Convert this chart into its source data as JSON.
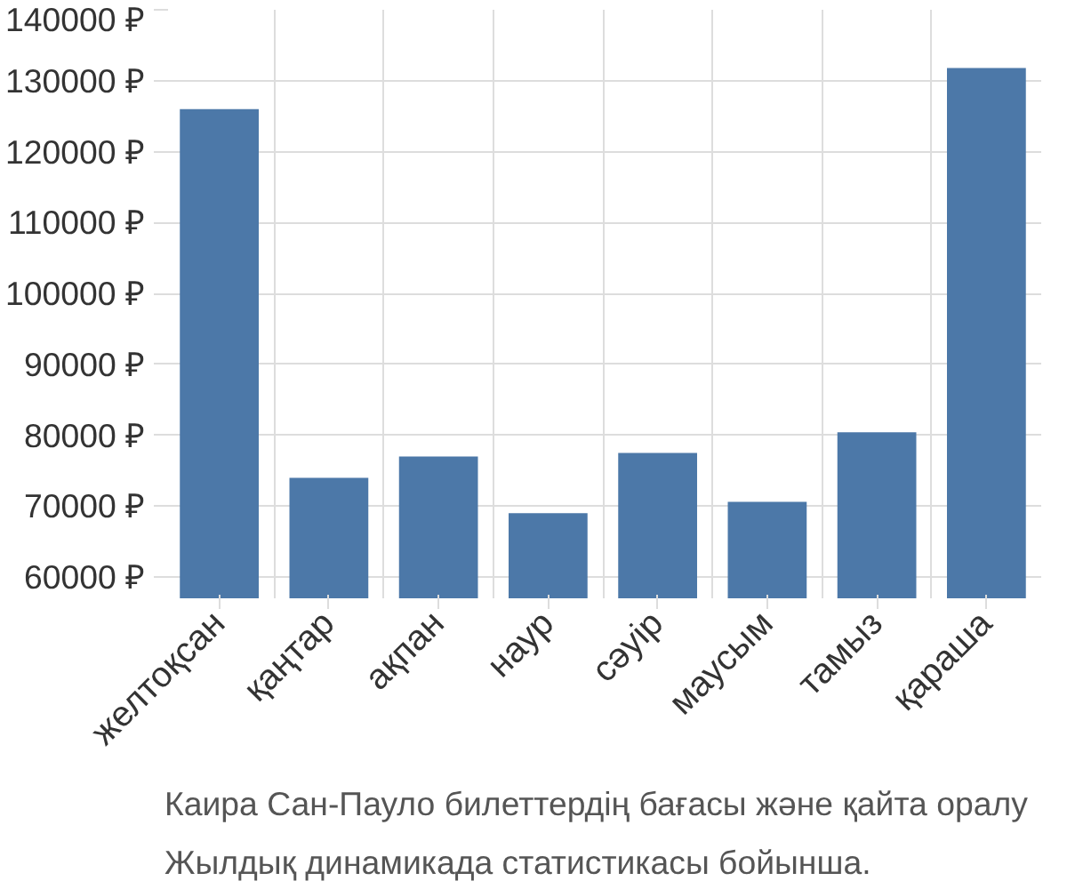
{
  "chart_data": {
    "type": "bar",
    "categories": [
      "желтоқсан",
      "қаңтар",
      "ақпан",
      "наур",
      "сәуір",
      "маусым",
      "тамыз",
      "қараша"
    ],
    "values": [
      126000,
      74000,
      77000,
      69000,
      77500,
      70600,
      80400,
      131800
    ],
    "color": "#4c78a8",
    "ylim": [
      57000,
      140000
    ],
    "yticks": [
      {
        "value": 60000,
        "label": "60000 ₽"
      },
      {
        "value": 70000,
        "label": "70000 ₽"
      },
      {
        "value": 80000,
        "label": "80000 ₽"
      },
      {
        "value": 90000,
        "label": "90000 ₽"
      },
      {
        "value": 100000,
        "label": "100000 ₽"
      },
      {
        "value": 110000,
        "label": "110000 ₽"
      },
      {
        "value": 120000,
        "label": "120000 ₽"
      },
      {
        "value": 130000,
        "label": "130000 ₽"
      },
      {
        "value": 140000,
        "label": "140000 ₽"
      }
    ],
    "grid": true,
    "annotations": [
      "Каира Сан-Пауло билеттердің бағасы және қайта оралу",
      "Жылдық динамикада статистикасы бойынша."
    ]
  }
}
